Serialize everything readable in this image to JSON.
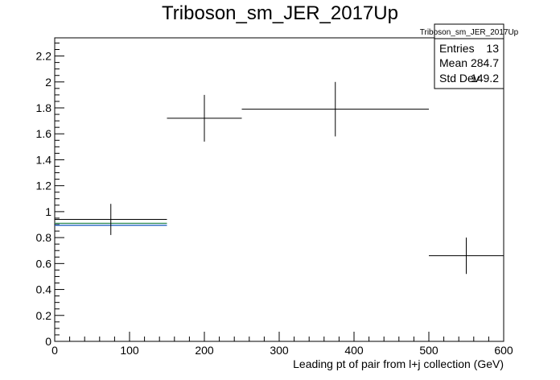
{
  "chart_data": {
    "type": "scatter",
    "title": "Triboson_sm_JER_2017Up",
    "xlabel": "Leading pt of pair from l+j collection (GeV)",
    "ylabel": "",
    "xlim": [
      0,
      600
    ],
    "ylim": [
      0,
      2.34
    ],
    "x_ticks": [
      "0",
      "100",
      "200",
      "300",
      "400",
      "500",
      "600"
    ],
    "y_ticks": [
      "0",
      "0.2",
      "0.4",
      "0.6",
      "0.8",
      "1",
      "1.2",
      "1.4",
      "1.6",
      "1.8",
      "2",
      "2.2"
    ],
    "grid": false,
    "points": [
      {
        "x": 75,
        "x_low": 0,
        "x_high": 150,
        "y": 0.94,
        "y_err": 0.12
      },
      {
        "x": 200,
        "x_low": 150,
        "x_high": 250,
        "y": 1.72,
        "y_err": 0.18
      },
      {
        "x": 375,
        "x_low": 250,
        "x_high": 500,
        "y": 1.79,
        "y_err": 0.21
      },
      {
        "x": 550,
        "x_low": 500,
        "x_high": 600,
        "y": 0.66,
        "y_err": 0.14
      }
    ],
    "reference_lines": [
      {
        "x_low": 0,
        "x_high": 150,
        "y": 0.91,
        "color": "#2e8b57"
      },
      {
        "x_low": 0,
        "x_high": 150,
        "y": 0.895,
        "color": "#1f5fbf"
      }
    ],
    "stats_box": {
      "name": "Triboson_sm_JER_2017Up",
      "rows": [
        {
          "label": "Entries",
          "value": "13"
        },
        {
          "label": "Mean",
          "value": "284.7"
        },
        {
          "label": "Std Dev",
          "value": "149.2"
        }
      ]
    }
  }
}
